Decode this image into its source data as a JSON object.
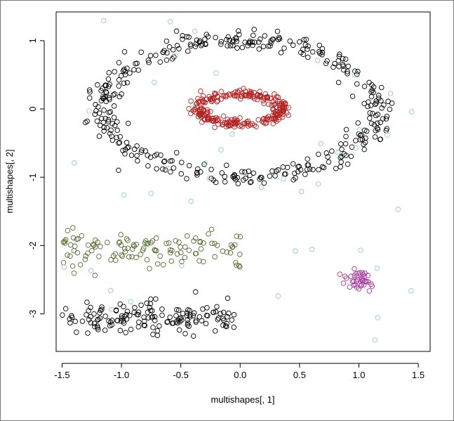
{
  "chart_data": {
    "type": "scatter",
    "title": "",
    "xlabel": "multishapes[, 1]",
    "ylabel": "multishapes[, 2]",
    "xlim": [
      -1.55,
      1.6
    ],
    "ylim": [
      -3.55,
      1.42
    ],
    "xticks": [
      -1.5,
      -1.0,
      -0.5,
      0.0,
      0.5,
      1.0,
      1.5
    ],
    "xtick_labels": [
      "-1.5",
      "-1.0",
      "-0.5",
      "0.0",
      "0.5",
      "1.0",
      "1.5"
    ],
    "yticks": [
      1,
      0,
      -1,
      -2,
      -3
    ],
    "ytick_labels": [
      "1",
      "0",
      "-1",
      "-2",
      "-3"
    ],
    "grid": false,
    "legend": "none",
    "marker": "open-circle",
    "series": [
      {
        "color": "#000000",
        "shape": "ring",
        "center": [
          0.0,
          0.0
        ],
        "radius": [
          1.15,
          1.0
        ],
        "jitter": 0.07,
        "points": 380
      },
      {
        "color": "#B22222",
        "shape": "ring",
        "center": [
          0.0,
          0.0
        ],
        "radius": [
          0.36,
          0.22
        ],
        "jitter": 0.035,
        "points": 270
      },
      {
        "color": "#000000",
        "shape": "band",
        "x_range": [
          -1.5,
          -0.05
        ],
        "y_center": -3.05,
        "y_spread": 0.12,
        "points": 150
      },
      {
        "color": "#556B2F",
        "shape": "band",
        "x_range": [
          -1.5,
          0.05
        ],
        "y_center": -2.05,
        "y_spread": 0.14,
        "points": 120
      },
      {
        "color": "#A9379B",
        "shape": "blob",
        "center": [
          1.0,
          -2.52
        ],
        "spread": [
          0.08,
          0.09
        ],
        "points": 40
      },
      {
        "color": "#8FD0B0",
        "shape": "noise",
        "x_range": [
          -1.5,
          1.5
        ],
        "y_range": [
          -3.4,
          1.3
        ],
        "points": 48
      }
    ]
  }
}
